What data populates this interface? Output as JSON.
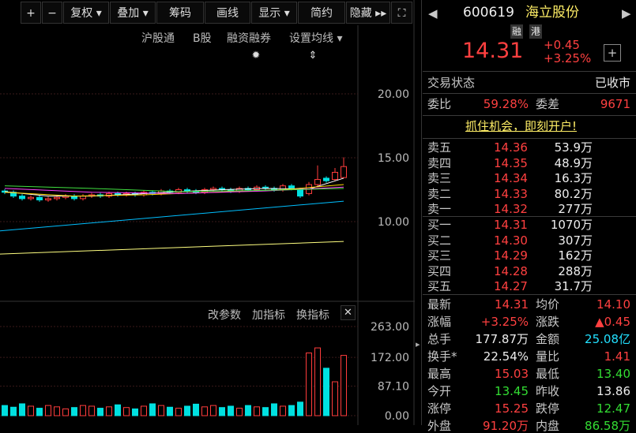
{
  "toolbar": [
    "复权",
    "叠加",
    "筹码",
    "画线",
    "显示",
    "简约",
    "隐藏"
  ],
  "subbar": [
    "沪股通",
    "B股",
    "融资融券",
    "设置均线"
  ],
  "indicator_bar": [
    "改参数",
    "加指标",
    "换指标"
  ],
  "chart_data": [
    {
      "type": "candlestick",
      "up_color": "#ff3c3c",
      "down_color": "#00e0e0",
      "ylim": [
        3.89,
        24.26
      ],
      "yticks": [
        {
          "value": 20,
          "label": "20.00"
        },
        {
          "value": 15,
          "label": "15.00"
        },
        {
          "value": 10,
          "label": "10.00"
        }
      ],
      "open": [
        12.4,
        12.3,
        12.0,
        11.8,
        11.9,
        11.7,
        11.8,
        11.9,
        12.0,
        11.8,
        12.0,
        12.1,
        12.0,
        12.2,
        12.1,
        12.2,
        12.1,
        12.3,
        12.2,
        12.4,
        12.3,
        12.5,
        12.4,
        12.3,
        12.5,
        12.6,
        12.5,
        12.4,
        12.6,
        12.5,
        12.7,
        12.6,
        12.5,
        12.8,
        12.5,
        12.2,
        12.9,
        13.4,
        13.3,
        13.45
      ],
      "high": [
        12.55,
        12.45,
        12.15,
        12.05,
        12.05,
        11.95,
        12.05,
        12.15,
        12.15,
        12.15,
        12.25,
        12.25,
        12.35,
        12.35,
        12.35,
        12.35,
        12.45,
        12.45,
        12.55,
        12.55,
        12.65,
        12.65,
        12.55,
        12.65,
        12.75,
        12.75,
        12.65,
        12.75,
        12.75,
        12.85,
        12.85,
        12.75,
        12.95,
        12.95,
        12.65,
        13.1,
        14.4,
        13.55,
        14.2,
        15.03
      ],
      "low": [
        12.15,
        11.85,
        11.65,
        11.65,
        11.55,
        11.55,
        11.65,
        11.75,
        11.65,
        11.65,
        11.85,
        11.85,
        11.85,
        11.95,
        11.95,
        11.95,
        11.95,
        12.05,
        12.05,
        12.15,
        12.15,
        12.25,
        12.15,
        12.15,
        12.35,
        12.35,
        12.25,
        12.25,
        12.35,
        12.35,
        12.45,
        12.35,
        12.35,
        12.45,
        11.85,
        12.05,
        12.75,
        13.05,
        13.2,
        13.4
      ],
      "close": [
        12.3,
        12.0,
        11.8,
        11.9,
        11.7,
        11.8,
        11.9,
        12.0,
        11.8,
        12.0,
        12.1,
        12.0,
        12.2,
        12.1,
        12.2,
        12.1,
        12.3,
        12.2,
        12.4,
        12.3,
        12.5,
        12.4,
        12.3,
        12.5,
        12.6,
        12.5,
        12.4,
        12.6,
        12.5,
        12.7,
        12.6,
        12.5,
        12.8,
        12.6,
        12.0,
        12.9,
        13.3,
        13.2,
        13.86,
        14.31
      ],
      "lines": [
        {
          "color": "#ffffff",
          "x": [
            0,
            5,
            10,
            15,
            20,
            25,
            30,
            35,
            39
          ],
          "values": [
            12.35,
            12.0,
            12.0,
            12.15,
            12.35,
            12.5,
            12.6,
            12.55,
            13.4
          ]
        },
        {
          "color": "#ffd700",
          "x": [
            0,
            8,
            16,
            24,
            32,
            39
          ],
          "values": [
            12.3,
            12.0,
            12.1,
            12.3,
            12.5,
            12.9
          ]
        },
        {
          "color": "#ff40ff",
          "x": [
            0,
            10,
            20,
            30,
            39
          ],
          "values": [
            12.6,
            12.3,
            12.2,
            12.4,
            12.7
          ]
        },
        {
          "color": "#40e040",
          "x": [
            0,
            10,
            20,
            30,
            39
          ],
          "values": [
            12.8,
            12.6,
            12.35,
            12.45,
            12.6
          ]
        },
        {
          "color": "#00bfff",
          "x": [
            -1,
            39
          ],
          "values": [
            9.25,
            11.6
          ]
        },
        {
          "color": "#ffff80",
          "x": [
            -1,
            39
          ],
          "values": [
            7.45,
            8.45
          ]
        }
      ]
    },
    {
      "type": "bar",
      "ylim": [
        -18.6,
        277.0
      ],
      "yticks": [
        {
          "value": 263,
          "label": "263.00"
        },
        {
          "value": 172,
          "label": "172.00"
        },
        {
          "value": 87.1,
          "label": "87.10"
        },
        {
          "value": 0,
          "label": "0.00"
        }
      ],
      "values": [
        30,
        25,
        35,
        28,
        22,
        30,
        26,
        20,
        24,
        30,
        28,
        22,
        26,
        32,
        24,
        20,
        28,
        35,
        30,
        25,
        22,
        28,
        34,
        26,
        30,
        24,
        28,
        22,
        30,
        26,
        24,
        35,
        28,
        30,
        40,
        185,
        200,
        140,
        100,
        177.87
      ]
    }
  ],
  "quote": {
    "code": "600619",
    "name": "海立股份",
    "tags": [
      "融",
      "港"
    ],
    "price": "14.31",
    "change": "+0.45",
    "change_pct": "+3.25%",
    "status_label": "交易状态",
    "status": "已收市",
    "wb_label": "委比",
    "wb": "59.28%",
    "wc_label": "委差",
    "wc": "9671",
    "promo": "抓住机会，即刻开户!",
    "asks": [
      [
        "卖五",
        "14.36",
        "53.9万"
      ],
      [
        "卖四",
        "14.35",
        "48.9万"
      ],
      [
        "卖三",
        "14.34",
        "16.3万"
      ],
      [
        "卖二",
        "14.33",
        "80.2万"
      ],
      [
        "卖一",
        "14.32",
        "277万"
      ]
    ],
    "bids": [
      [
        "买一",
        "14.31",
        "1070万"
      ],
      [
        "买二",
        "14.30",
        "307万"
      ],
      [
        "买三",
        "14.29",
        "162万"
      ],
      [
        "买四",
        "14.28",
        "288万"
      ],
      [
        "买五",
        "14.27",
        "31.7万"
      ]
    ],
    "stats": [
      [
        "最新",
        "14.31",
        "均价",
        "14.10"
      ],
      [
        "涨幅",
        "+3.25%",
        "涨跌",
        "▲0.45"
      ],
      [
        "总手",
        "177.87万",
        "金额",
        "25.08亿"
      ],
      [
        "换手*",
        "22.54%",
        "量比",
        "1.41"
      ],
      [
        "最高",
        "15.03",
        "最低",
        "13.40"
      ],
      [
        "今开",
        "13.45",
        "昨收",
        "13.86"
      ],
      [
        "涨停",
        "15.25",
        "跌停",
        "12.47"
      ],
      [
        "外盘",
        "91.20万",
        "内盘",
        "86.58万"
      ]
    ]
  }
}
